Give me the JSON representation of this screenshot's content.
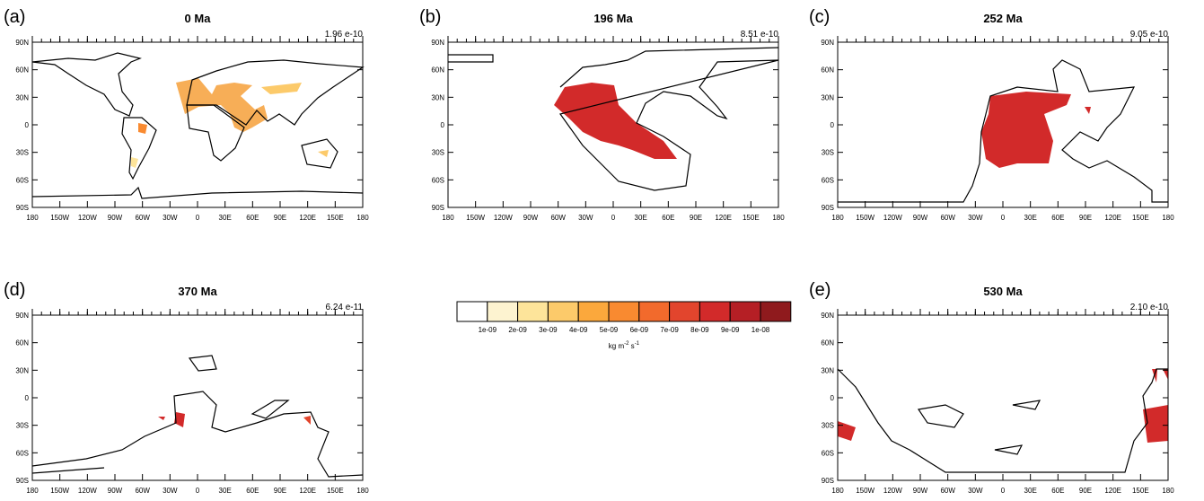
{
  "panels": [
    {
      "label": "(a)",
      "title": "0 Ma",
      "max": "1.96 e-10"
    },
    {
      "label": "(b)",
      "title": "196 Ma",
      "max": "8.51 e-10"
    },
    {
      "label": "(c)",
      "title": "252 Ma",
      "max": "9.05 e-10"
    },
    {
      "label": "(d)",
      "title": "370 Ma",
      "max": "6.24 e-11"
    },
    {
      "label": "(e)",
      "title": "530 Ma",
      "max": "2.10 e-10"
    }
  ],
  "lat_ticks": [
    "90N",
    "60N",
    "30N",
    "0",
    "30S",
    "60S",
    "90S"
  ],
  "lon_ticks": [
    "180",
    "150W",
    "120W",
    "90W",
    "60W",
    "30W",
    "0",
    "30E",
    "60E",
    "90E",
    "120E",
    "150E",
    "180"
  ],
  "colorbar": {
    "colors": [
      "#ffffff",
      "#fdf3d0",
      "#fde49a",
      "#fcca6a",
      "#fba83c",
      "#f98a30",
      "#f26a2c",
      "#e2452d",
      "#d22a2a",
      "#b51f25",
      "#8f1a1d"
    ],
    "labels": [
      "1e-09",
      "2e-09",
      "3e-09",
      "4e-09",
      "5e-09",
      "6e-09",
      "7e-09",
      "8e-09",
      "9e-09",
      "1e-08"
    ],
    "units": [
      "kg m",
      "-2",
      " s",
      "-1"
    ]
  }
}
